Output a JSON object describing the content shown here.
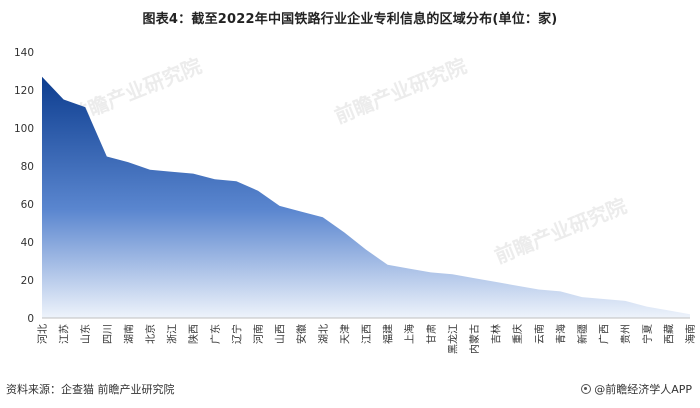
{
  "title": "图表4：截至2022年中国铁路行业企业专利信息的区域分布(单位：家)",
  "source": "资料来源：企查猫 前瞻产业研究院",
  "brand": "@前瞻经济学人APP",
  "watermark": "前瞻产业研究院",
  "chart_data": {
    "type": "area",
    "title": "图表4：截至2022年中国铁路行业企业专利信息的区域分布(单位：家)",
    "xlabel": "",
    "ylabel": "",
    "ylim": [
      0,
      140
    ],
    "yticks": [
      0,
      20,
      40,
      60,
      80,
      100,
      120,
      140
    ],
    "grid": false,
    "legend": "none",
    "fill_top_color": "#0d3d8f",
    "fill_bottom_color": "#eef3fb",
    "categories": [
      "河北",
      "江苏",
      "山东",
      "四川",
      "湖南",
      "北京",
      "浙江",
      "陕西",
      "广东",
      "辽宁",
      "河南",
      "山西",
      "安徽",
      "湖北",
      "天津",
      "江西",
      "福建",
      "上海",
      "甘肃",
      "黑龙江",
      "内蒙古",
      "吉林",
      "重庆",
      "云南",
      "青海",
      "新疆",
      "广西",
      "贵州",
      "宁夏",
      "西藏",
      "海南"
    ],
    "values": [
      127,
      115,
      111,
      85,
      82,
      78,
      77,
      76,
      73,
      72,
      67,
      59,
      56,
      53,
      45,
      36,
      28,
      26,
      24,
      23,
      21,
      19,
      17,
      15,
      14,
      11,
      10,
      9,
      6,
      4,
      2
    ]
  }
}
